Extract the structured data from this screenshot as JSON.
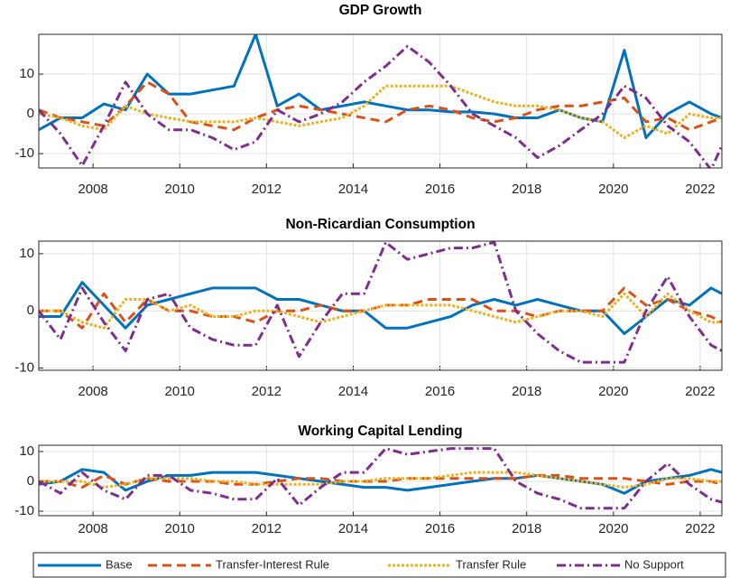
{
  "chart_data": [
    {
      "type": "line",
      "title": "GDP Growth",
      "x": [
        2006.75,
        2007.25,
        2007.75,
        2008.25,
        2008.75,
        2009.25,
        2009.75,
        2010.25,
        2010.75,
        2011.25,
        2011.75,
        2012.25,
        2012.75,
        2013.25,
        2013.75,
        2014.25,
        2014.75,
        2015.25,
        2015.75,
        2016.25,
        2016.75,
        2017.25,
        2017.75,
        2018.25,
        2018.75,
        2019.25,
        2019.75,
        2020.25,
        2020.75,
        2021.25,
        2021.75,
        2022.25,
        2022.5
      ],
      "xlim": [
        2006.75,
        2022.5
      ],
      "xticks": [
        2008,
        2010,
        2012,
        2014,
        2016,
        2018,
        2020,
        2022
      ],
      "ylim": [
        -13.6,
        20
      ],
      "yticks": [
        -10,
        0,
        10
      ],
      "grid": true,
      "series": [
        {
          "name": "Base",
          "color": "#0072bd",
          "style": "solid",
          "values": [
            -4,
            -1,
            -1,
            2.5,
            1,
            10,
            5,
            5,
            6,
            7,
            20,
            2,
            5,
            1,
            2,
            3,
            2,
            1,
            1,
            0.5,
            0.5,
            0,
            -1,
            -1,
            1,
            -1,
            -2,
            16,
            -6,
            0,
            3,
            0,
            -1
          ]
        },
        {
          "name": "Transfer-Interest Rule",
          "color": "#d95319",
          "style": "dashed",
          "values": [
            1,
            -1,
            -2,
            -3,
            2,
            8,
            5,
            -2,
            -3,
            -4,
            -1,
            1,
            2,
            1,
            0,
            -1,
            -2,
            1,
            2,
            1,
            -1,
            -2,
            -1,
            1,
            2,
            2,
            3,
            4,
            -2,
            -1,
            -4,
            -2,
            -1
          ]
        },
        {
          "name": "Transfer Rule",
          "color": "#edb120",
          "style": "dotted",
          "values": [
            0,
            -1,
            -3,
            -4,
            2,
            0,
            -1,
            -2,
            -2,
            -2,
            -1,
            -2,
            -3,
            -2,
            -1,
            2,
            7,
            7,
            7,
            7,
            5,
            3,
            2,
            2,
            1,
            -1,
            -2,
            -6,
            -3,
            -5,
            0,
            -1,
            -1
          ]
        },
        {
          "name": "No Support",
          "color": "#7e2f8e",
          "style": "dashdot",
          "values": [
            1,
            -5,
            -13,
            -3,
            8,
            0,
            -4,
            -4,
            -6,
            -9,
            -7,
            1,
            -2,
            0,
            3,
            8,
            12,
            17,
            13,
            7,
            0,
            -3,
            -6,
            -11,
            -8,
            -4,
            0,
            7,
            4,
            -3,
            -7,
            -14,
            -8
          ]
        }
      ]
    },
    {
      "type": "line",
      "title": "Non-Ricardian Consumption",
      "x": [
        2006.75,
        2007.25,
        2007.75,
        2008.25,
        2008.75,
        2009.25,
        2009.75,
        2010.25,
        2010.75,
        2011.25,
        2011.75,
        2012.25,
        2012.75,
        2013.25,
        2013.75,
        2014.25,
        2014.75,
        2015.25,
        2015.75,
        2016.25,
        2016.75,
        2017.25,
        2017.75,
        2018.25,
        2018.75,
        2019.25,
        2019.75,
        2020.25,
        2020.75,
        2021.25,
        2021.75,
        2022.25,
        2022.5
      ],
      "xlim": [
        2006.75,
        2022.5
      ],
      "xticks": [
        2008,
        2010,
        2012,
        2014,
        2016,
        2018,
        2020,
        2022
      ],
      "ylim": [
        -10.4,
        12.2
      ],
      "yticks": [
        -10,
        0,
        10
      ],
      "grid": true,
      "series": [
        {
          "color": "#0072bd",
          "style": "solid",
          "values": [
            -1,
            -1,
            5,
            1,
            -3,
            1,
            2,
            3,
            4,
            4,
            4,
            2,
            2,
            1,
            0,
            0,
            -3,
            -3,
            -2,
            -1,
            1,
            2,
            1,
            2,
            1,
            0,
            0,
            -4,
            -1,
            2,
            1,
            4,
            3
          ]
        },
        {
          "color": "#d95319",
          "style": "dashed",
          "values": [
            0,
            0,
            -3,
            3,
            -2,
            2,
            0,
            0,
            -1,
            -1,
            -2,
            0,
            0,
            1,
            0,
            0,
            1,
            1,
            2,
            2,
            2,
            0,
            0,
            -1,
            0,
            0,
            0,
            4,
            1,
            2,
            0,
            -1,
            -2
          ]
        },
        {
          "color": "#edb120",
          "style": "dotted",
          "values": [
            0,
            0,
            -2,
            -3,
            2,
            2,
            0,
            1,
            -1,
            -1,
            0,
            0,
            -1,
            -2,
            -1,
            0,
            1,
            1,
            1,
            1,
            0,
            -1,
            -2,
            -1,
            0,
            0,
            -1,
            3,
            -1,
            3,
            0,
            -2,
            -2
          ]
        },
        {
          "color": "#7e2f8e",
          "style": "dashdot",
          "values": [
            0,
            -5,
            4,
            -2,
            -7,
            2,
            3,
            -3,
            -5,
            -6,
            -6,
            1,
            -8,
            -2,
            3,
            3,
            12,
            9,
            10,
            11,
            11,
            12,
            0,
            -4,
            -7,
            -9,
            -9,
            -9,
            0,
            6,
            -1,
            -6,
            -7
          ]
        }
      ]
    },
    {
      "type": "line",
      "title": "Working Capital Lending",
      "x": [
        2006.75,
        2007.25,
        2007.75,
        2008.25,
        2008.75,
        2009.25,
        2009.75,
        2010.25,
        2010.75,
        2011.25,
        2011.75,
        2012.25,
        2012.75,
        2013.25,
        2013.75,
        2014.25,
        2014.75,
        2015.25,
        2015.75,
        2016.25,
        2016.75,
        2017.25,
        2017.75,
        2018.25,
        2018.75,
        2019.25,
        2019.75,
        2020.25,
        2020.75,
        2021.25,
        2021.75,
        2022.25,
        2022.5
      ],
      "xlim": [
        2006.75,
        2022.5
      ],
      "xticks": [
        2008,
        2010,
        2012,
        2014,
        2016,
        2018,
        2020,
        2022
      ],
      "ylim": [
        -11.5,
        12.1
      ],
      "yticks": [
        -10,
        0,
        10
      ],
      "grid": true,
      "series": [
        {
          "color": "#0072bd",
          "style": "solid",
          "values": [
            -1,
            0,
            4,
            3,
            -3,
            0,
            2,
            2,
            3,
            3,
            3,
            2,
            1,
            0,
            -1,
            -2,
            -2,
            -3,
            -2,
            -1,
            0,
            1,
            1,
            2,
            1,
            0,
            -1,
            -4,
            0,
            1,
            2,
            4,
            3
          ]
        },
        {
          "color": "#d95319",
          "style": "dashed",
          "values": [
            0,
            0,
            -2,
            2,
            -1,
            1,
            0,
            0,
            0,
            -1,
            -1,
            0,
            1,
            1,
            0,
            0,
            0,
            1,
            1,
            1,
            1,
            1,
            1,
            2,
            2,
            1,
            1,
            1,
            0,
            -1,
            0,
            0,
            -1
          ]
        },
        {
          "color": "#edb120",
          "style": "dotted",
          "values": [
            0,
            0,
            0,
            -2,
            -1,
            1,
            1,
            1,
            0,
            0,
            -1,
            -1,
            -1,
            -1,
            0,
            0,
            1,
            1,
            1,
            2,
            3,
            3,
            3,
            2,
            1,
            0,
            -1,
            -2,
            -1,
            1,
            1,
            0,
            0
          ]
        },
        {
          "color": "#7e2f8e",
          "style": "dashdot",
          "values": [
            0,
            -4,
            3,
            -3,
            -6,
            2,
            2,
            -3,
            -4,
            -6,
            -6,
            1,
            -8,
            -2,
            3,
            3,
            11,
            9,
            10,
            11,
            11,
            11,
            0,
            -4,
            -6,
            -9,
            -9,
            -9,
            0,
            6,
            -1,
            -6,
            -7
          ]
        }
      ]
    }
  ]
}
